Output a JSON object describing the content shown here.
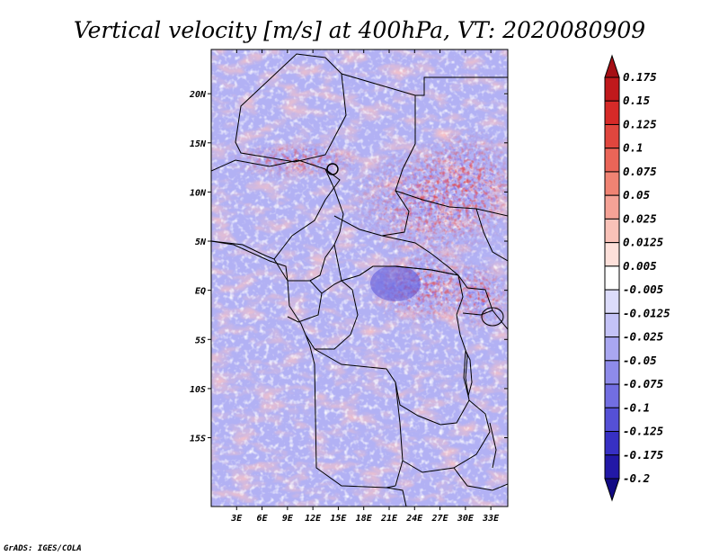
{
  "title": "Vertical velocity [m/s] at 400hPa, VT: 2020080909",
  "credit": "GrADS: IGES/COLA",
  "map": {
    "variable": "Vertical velocity",
    "units": "m/s",
    "level": "400hPa",
    "valid_time": "2020080909",
    "lon_range": [
      0,
      35
    ],
    "lat_range": [
      -22,
      24.5
    ],
    "x_tick_labels": [
      "3E",
      "6E",
      "9E",
      "12E",
      "15E",
      "18E",
      "21E",
      "24E",
      "27E",
      "30E",
      "33E"
    ],
    "x_tick_values": [
      3,
      6,
      9,
      12,
      15,
      18,
      21,
      24,
      27,
      30,
      33
    ],
    "y_tick_labels": [
      "20N",
      "15N",
      "10N",
      "5N",
      "EQ",
      "5S",
      "10S",
      "15S"
    ],
    "y_tick_values": [
      20,
      15,
      10,
      5,
      0,
      -5,
      -10,
      -15
    ]
  },
  "colorbar": {
    "labels": [
      "0.175",
      "0.15",
      "0.125",
      "0.1",
      "0.075",
      "0.05",
      "0.025",
      "0.0125",
      "0.005",
      "-0.005",
      "-0.0125",
      "-0.025",
      "-0.05",
      "-0.075",
      "-0.1",
      "-0.125",
      "-0.175",
      "-0.2"
    ],
    "colors": [
      "#a50f15",
      "#c0191c",
      "#d62a28",
      "#e0463e",
      "#ea6558",
      "#f08373",
      "#f5a296",
      "#f9c2b8",
      "#fde0da",
      "#ffffff",
      "#dcdcfb",
      "#c4c3f7",
      "#a9a7f1",
      "#8e8bea",
      "#726ee2",
      "#5550d6",
      "#3730c4",
      "#2218a6",
      "#120a84"
    ]
  },
  "colors": {
    "frame": "#000000",
    "boundaries": "#000000",
    "background": "#ffffff"
  }
}
